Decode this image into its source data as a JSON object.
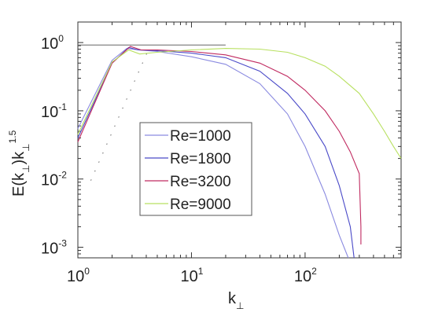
{
  "chart_data": {
    "type": "line",
    "xlabel": "k",
    "xlabel_sub": "⊥",
    "ylabel_parts": [
      "E(k",
      "⊥",
      ")k",
      "⊥",
      "1.5"
    ],
    "xscale": "log",
    "yscale": "log",
    "xlim": [
      1,
      700
    ],
    "ylim": [
      0.0007,
      2
    ],
    "xticks": [
      {
        "base": "10",
        "exp": "0",
        "value": 1
      },
      {
        "base": "10",
        "exp": "1",
        "value": 10
      },
      {
        "base": "10",
        "exp": "2",
        "value": 100
      }
    ],
    "yticks": [
      {
        "base": "10",
        "exp": "0",
        "value": 1
      },
      {
        "base": "10",
        "exp": "-1",
        "value": 0.1
      },
      {
        "base": "10",
        "exp": "-2",
        "value": 0.01
      },
      {
        "base": "10",
        "exp": "-3",
        "value": 0.001
      }
    ],
    "grid": false,
    "legend_position": "center",
    "reference_lines": [
      {
        "style": "dashed",
        "points": [
          [
            1.3,
            0.0095
          ],
          [
            4.2,
            0.8
          ]
        ]
      },
      {
        "style": "solid",
        "points": [
          [
            1,
            0.92
          ],
          [
            20,
            0.92
          ]
        ]
      }
    ],
    "series": [
      {
        "name": "Re=1000",
        "color": "#8a8ae0",
        "points": [
          [
            1,
            0.055
          ],
          [
            2,
            0.55
          ],
          [
            2.7,
            0.82
          ],
          [
            3.4,
            0.78
          ],
          [
            5,
            0.74
          ],
          [
            10,
            0.62
          ],
          [
            20,
            0.48
          ],
          [
            40,
            0.25
          ],
          [
            70,
            0.09
          ],
          [
            100,
            0.03
          ],
          [
            150,
            0.006
          ],
          [
            200,
            0.0015
          ],
          [
            240,
            0.0007
          ]
        ]
      },
      {
        "name": "Re=1800",
        "color": "#4a4ac8",
        "points": [
          [
            1,
            0.04
          ],
          [
            2,
            0.5
          ],
          [
            2.8,
            0.85
          ],
          [
            3.4,
            0.78
          ],
          [
            5,
            0.76
          ],
          [
            10,
            0.7
          ],
          [
            20,
            0.6
          ],
          [
            40,
            0.38
          ],
          [
            70,
            0.18
          ],
          [
            100,
            0.09
          ],
          [
            150,
            0.03
          ],
          [
            200,
            0.008
          ],
          [
            250,
            0.002
          ],
          [
            270,
            0.0007
          ]
        ]
      },
      {
        "name": "Re=3200",
        "color": "#c02a60",
        "points": [
          [
            1,
            0.035
          ],
          [
            2,
            0.5
          ],
          [
            2.9,
            0.88
          ],
          [
            3.6,
            0.78
          ],
          [
            5,
            0.78
          ],
          [
            10,
            0.74
          ],
          [
            20,
            0.66
          ],
          [
            40,
            0.5
          ],
          [
            70,
            0.32
          ],
          [
            100,
            0.2
          ],
          [
            150,
            0.1
          ],
          [
            200,
            0.05
          ],
          [
            250,
            0.025
          ],
          [
            300,
            0.012
          ],
          [
            310,
            0.002
          ],
          [
            310,
            0.0011
          ]
        ]
      },
      {
        "name": "Re=9000",
        "color": "#b8e060",
        "points": [
          [
            1,
            0.045
          ],
          [
            2,
            0.52
          ],
          [
            2.8,
            0.78
          ],
          [
            3.5,
            0.68
          ],
          [
            5,
            0.72
          ],
          [
            10,
            0.78
          ],
          [
            20,
            0.82
          ],
          [
            40,
            0.8
          ],
          [
            70,
            0.72
          ],
          [
            100,
            0.6
          ],
          [
            150,
            0.45
          ],
          [
            200,
            0.32
          ],
          [
            300,
            0.18
          ],
          [
            400,
            0.09
          ],
          [
            500,
            0.05
          ],
          [
            600,
            0.03
          ],
          [
            700,
            0.02
          ]
        ]
      }
    ]
  }
}
